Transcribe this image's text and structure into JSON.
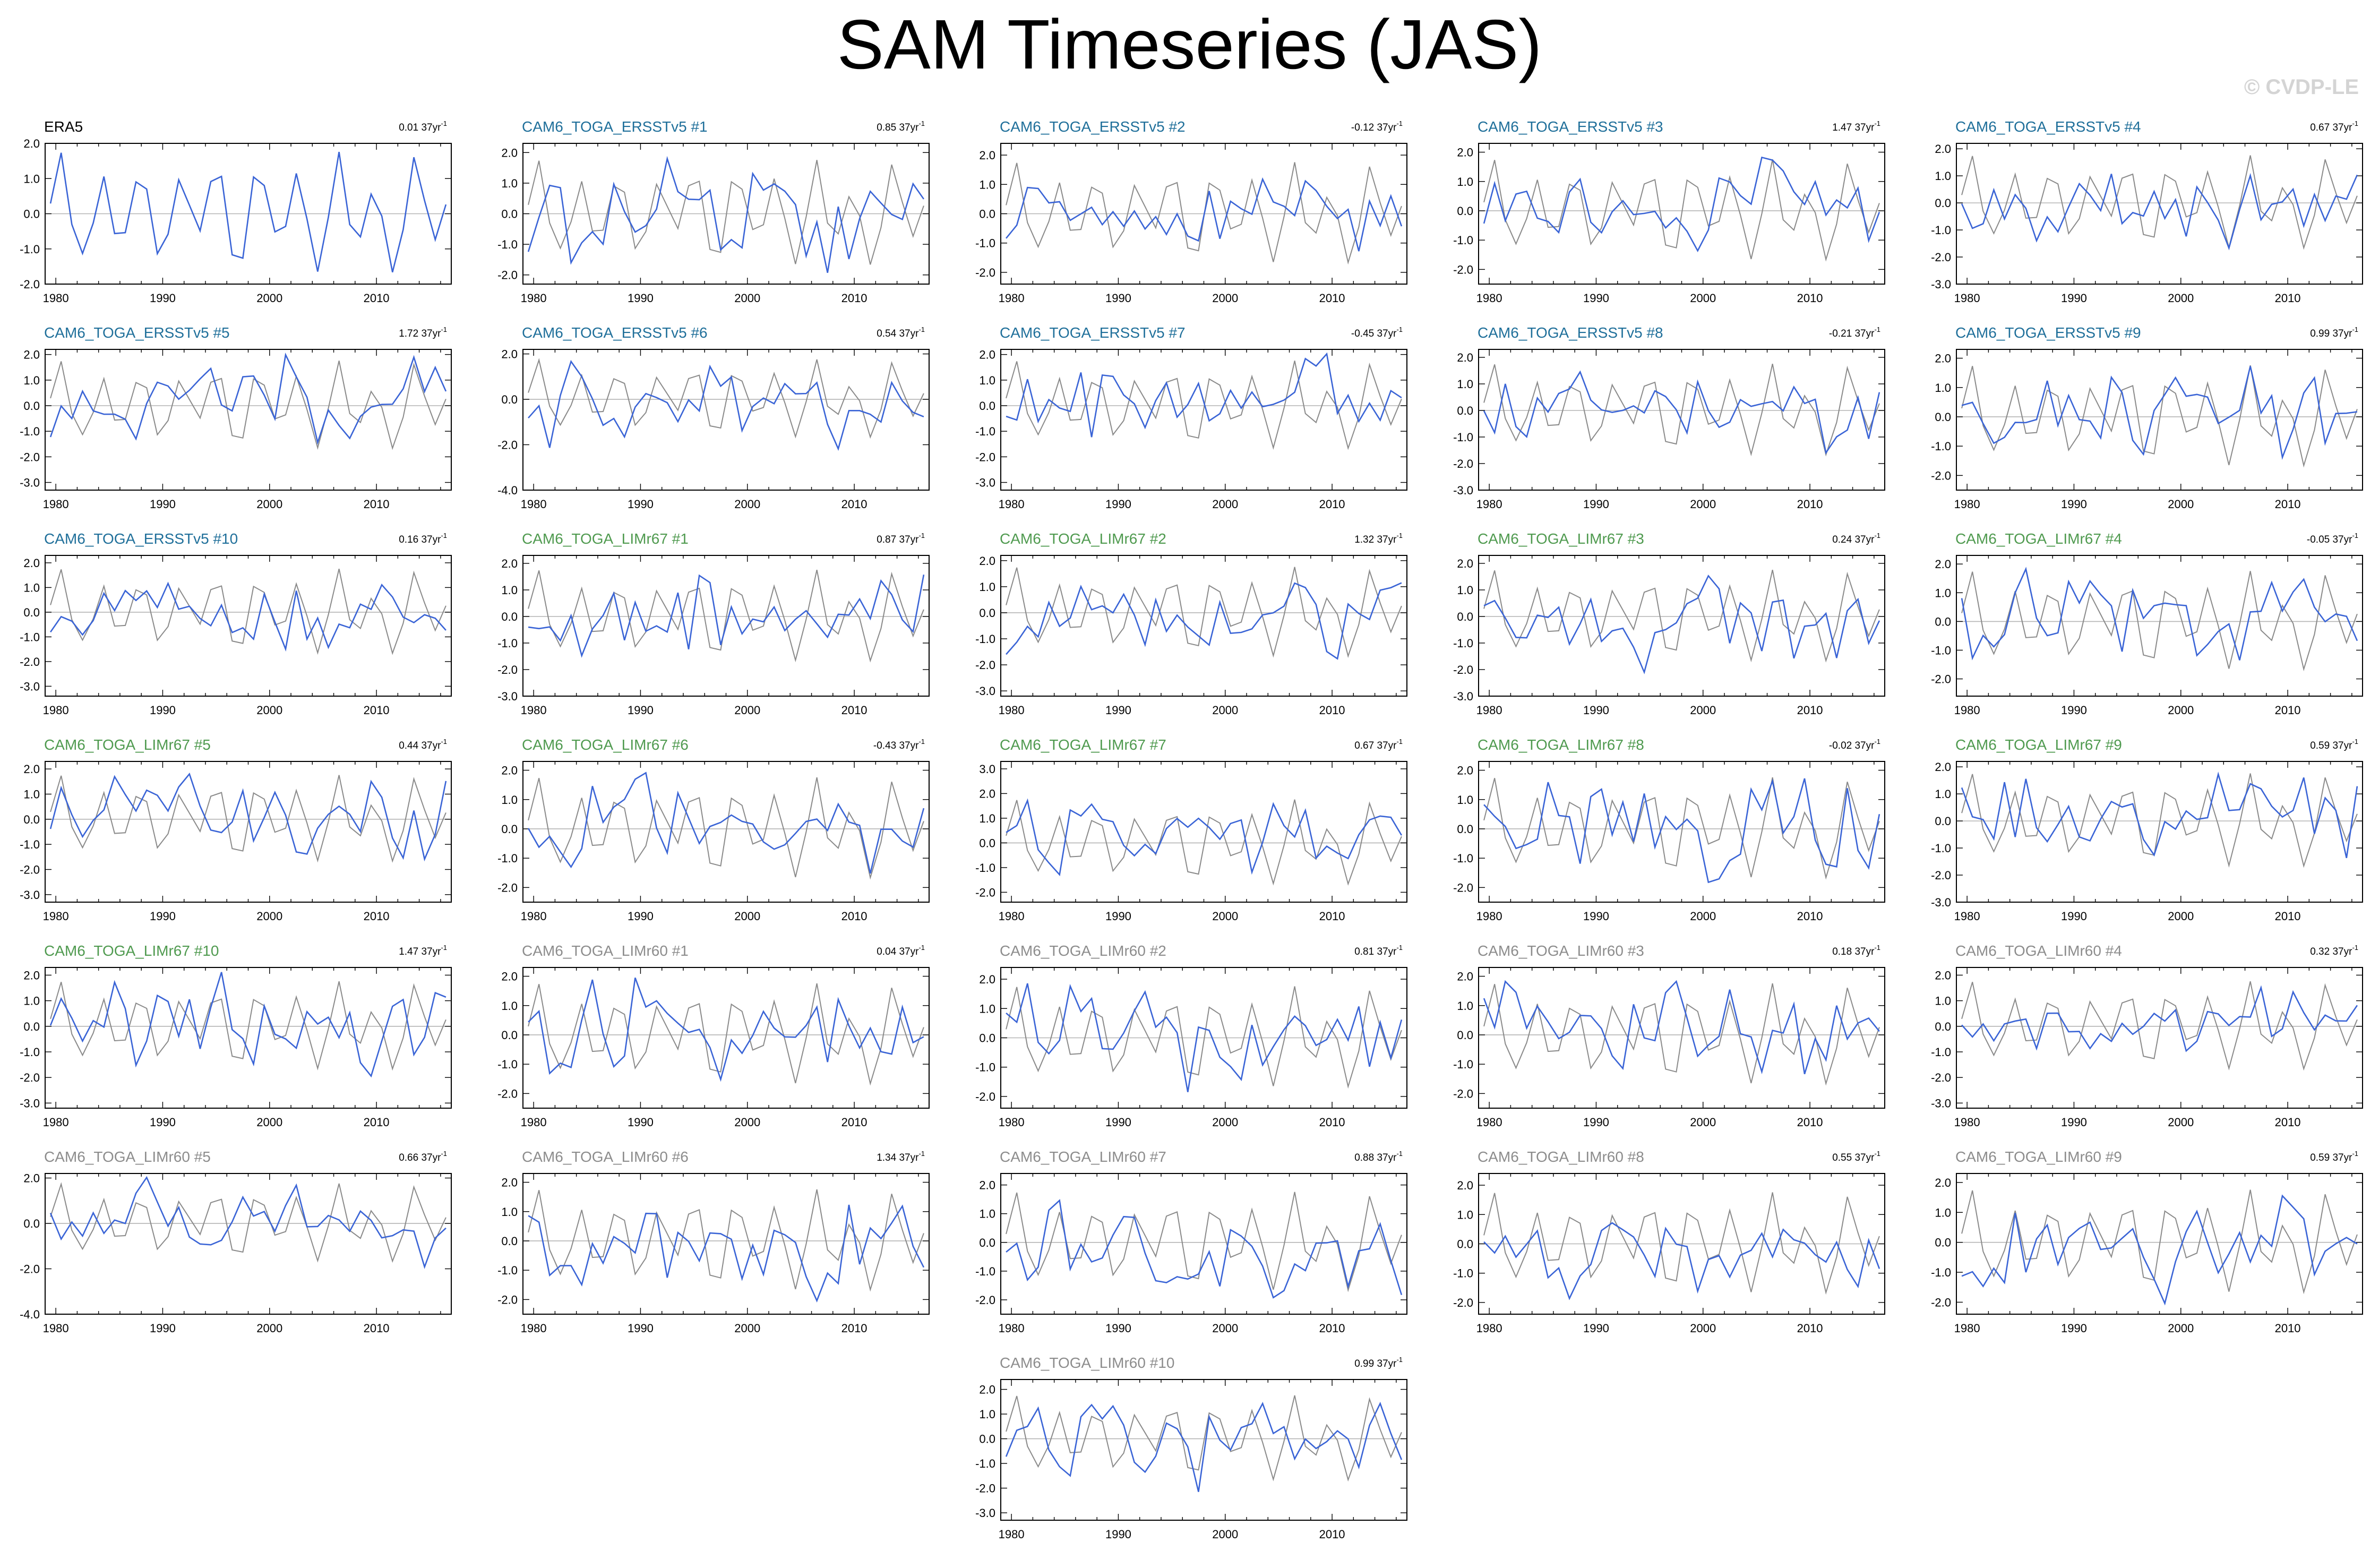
{
  "title": "SAM Timeseries (JAS)",
  "watermark": "© CVDP-LE",
  "colors": {
    "obs": "#000000",
    "ersst": "#1f6f9a",
    "limr67": "#4f9a4f",
    "limr60": "#8c8c8c",
    "member_line": "#3a64d6",
    "reference_line": "#8a8a8a",
    "zero_line": "#b4b4b4"
  },
  "chart_data": {
    "type": "line",
    "layout": "small-multiples, 5 columns",
    "x_range": [
      1979,
      2017
    ],
    "x_ticks": [
      1980,
      1990,
      2000,
      2010
    ],
    "panels": [
      {
        "title": "ERA5",
        "trend": "0.01 37yr",
        "group": "obs",
        "ylim": [
          -2.0,
          2.0
        ],
        "yticks": [
          "2.0",
          "1.0",
          "0.0",
          "-1.0",
          "-2.0"
        ],
        "seed": 11
      },
      {
        "title": "CAM6_TOGA_ERSSTv5 #1",
        "trend": "0.85 37yr",
        "group": "ersst",
        "ylim": [
          -2.3,
          2.3
        ],
        "yticks": [
          "2.0",
          "1.0",
          "0.0",
          "-1.0",
          "-2.0"
        ],
        "seed": 21
      },
      {
        "title": "CAM6_TOGA_ERSSTv5 #2",
        "trend": "-0.12 37yr",
        "group": "ersst",
        "ylim": [
          -2.4,
          2.4
        ],
        "yticks": [
          "2.0",
          "1.0",
          "0.0",
          "-1.0",
          "-2.0"
        ],
        "seed": 22
      },
      {
        "title": "CAM6_TOGA_ERSSTv5 #3",
        "trend": "1.47 37yr",
        "group": "ersst",
        "ylim": [
          -2.5,
          2.3
        ],
        "yticks": [
          "2.0",
          "1.0",
          "0.0",
          "-1.0",
          "-2.0"
        ],
        "seed": 23
      },
      {
        "title": "CAM6_TOGA_ERSSTv5 #4",
        "trend": "0.67 37yr",
        "group": "ersst",
        "ylim": [
          -3.0,
          2.2
        ],
        "yticks": [
          "2.0",
          "1.0",
          "0.0",
          "-1.0",
          "-2.0",
          "-3.0"
        ],
        "seed": 24
      },
      {
        "title": "CAM6_TOGA_ERSSTv5 #5",
        "trend": "1.72 37yr",
        "group": "ersst",
        "ylim": [
          -3.3,
          2.2
        ],
        "yticks": [
          "2.0",
          "1.0",
          "0.0",
          "-1.0",
          "-2.0",
          "-3.0"
        ],
        "seed": 25
      },
      {
        "title": "CAM6_TOGA_ERSSTv5 #6",
        "trend": "0.54 37yr",
        "group": "ersst",
        "ylim": [
          -4.0,
          2.2
        ],
        "yticks": [
          "2.0",
          "0.0",
          "-2.0",
          "-4.0"
        ],
        "seed": 26
      },
      {
        "title": "CAM6_TOGA_ERSSTv5 #7",
        "trend": "-0.45 37yr",
        "group": "ersst",
        "ylim": [
          -3.3,
          2.2
        ],
        "yticks": [
          "2.0",
          "1.0",
          "0.0",
          "-1.0",
          "-2.0",
          "-3.0"
        ],
        "seed": 27
      },
      {
        "title": "CAM6_TOGA_ERSSTv5 #8",
        "trend": "-0.21 37yr",
        "group": "ersst",
        "ylim": [
          -3.0,
          2.3
        ],
        "yticks": [
          "2.0",
          "1.0",
          "0.0",
          "-1.0",
          "-2.0",
          "-3.0"
        ],
        "seed": 28
      },
      {
        "title": "CAM6_TOGA_ERSSTv5 #9",
        "trend": "0.99 37yr",
        "group": "ersst",
        "ylim": [
          -2.5,
          2.3
        ],
        "yticks": [
          "2.0",
          "1.0",
          "0.0",
          "-1.0",
          "-2.0"
        ],
        "seed": 29
      },
      {
        "title": "CAM6_TOGA_ERSSTv5 #10",
        "trend": "0.16 37yr",
        "group": "ersst",
        "ylim": [
          -3.4,
          2.3
        ],
        "yticks": [
          "2.0",
          "1.0",
          "0.0",
          "-1.0",
          "-2.0",
          "-3.0"
        ],
        "seed": 30
      },
      {
        "title": "CAM6_TOGA_LIMr67 #1",
        "trend": "0.87 37yr",
        "group": "limr67",
        "ylim": [
          -3.0,
          2.3
        ],
        "yticks": [
          "2.0",
          "1.0",
          "0.0",
          "-1.0",
          "-2.0",
          "-3.0"
        ],
        "seed": 31
      },
      {
        "title": "CAM6_TOGA_LIMr67 #2",
        "trend": "1.32 37yr",
        "group": "limr67",
        "ylim": [
          -3.2,
          2.2
        ],
        "yticks": [
          "2.0",
          "1.0",
          "0.0",
          "-1.0",
          "-2.0",
          "-3.0"
        ],
        "seed": 32
      },
      {
        "title": "CAM6_TOGA_LIMr67 #3",
        "trend": "0.24 37yr",
        "group": "limr67",
        "ylim": [
          -3.0,
          2.3
        ],
        "yticks": [
          "2.0",
          "1.0",
          "0.0",
          "-1.0",
          "-2.0",
          "-3.0"
        ],
        "seed": 33
      },
      {
        "title": "CAM6_TOGA_LIMr67 #4",
        "trend": "-0.05 37yr",
        "group": "limr67",
        "ylim": [
          -2.6,
          2.3
        ],
        "yticks": [
          "2.0",
          "1.0",
          "0.0",
          "-1.0",
          "-2.0"
        ],
        "seed": 34
      },
      {
        "title": "CAM6_TOGA_LIMr67 #5",
        "trend": "0.44 37yr",
        "group": "limr67",
        "ylim": [
          -3.3,
          2.3
        ],
        "yticks": [
          "2.0",
          "1.0",
          "0.0",
          "-1.0",
          "-2.0",
          "-3.0"
        ],
        "seed": 35
      },
      {
        "title": "CAM6_TOGA_LIMr67 #6",
        "trend": "-0.43 37yr",
        "group": "limr67",
        "ylim": [
          -2.5,
          2.3
        ],
        "yticks": [
          "2.0",
          "1.0",
          "0.0",
          "-1.0",
          "-2.0"
        ],
        "seed": 36
      },
      {
        "title": "CAM6_TOGA_LIMr67 #7",
        "trend": "0.67 37yr",
        "group": "limr67",
        "ylim": [
          -2.4,
          3.3
        ],
        "yticks": [
          "3.0",
          "2.0",
          "1.0",
          "0.0",
          "-1.0",
          "-2.0"
        ],
        "seed": 37
      },
      {
        "title": "CAM6_TOGA_LIMr67 #8",
        "trend": "-0.02 37yr",
        "group": "limr67",
        "ylim": [
          -2.5,
          2.3
        ],
        "yticks": [
          "2.0",
          "1.0",
          "0.0",
          "-1.0",
          "-2.0"
        ],
        "seed": 38
      },
      {
        "title": "CAM6_TOGA_LIMr67 #9",
        "trend": "0.59 37yr",
        "group": "limr67",
        "ylim": [
          -3.0,
          2.2
        ],
        "yticks": [
          "2.0",
          "1.0",
          "0.0",
          "-1.0",
          "-2.0",
          "-3.0"
        ],
        "seed": 39
      },
      {
        "title": "CAM6_TOGA_LIMr67 #10",
        "trend": "1.47 37yr",
        "group": "limr67",
        "ylim": [
          -3.2,
          2.3
        ],
        "yticks": [
          "2.0",
          "1.0",
          "0.0",
          "-1.0",
          "-2.0",
          "-3.0"
        ],
        "seed": 40
      },
      {
        "title": "CAM6_TOGA_LIMr60 #1",
        "trend": "0.04 37yr",
        "group": "limr60",
        "ylim": [
          -2.5,
          2.3
        ],
        "yticks": [
          "2.0",
          "1.0",
          "0.0",
          "-1.0",
          "-2.0"
        ],
        "seed": 41
      },
      {
        "title": "CAM6_TOGA_LIMr60 #2",
        "trend": "0.81 37yr",
        "group": "limr60",
        "ylim": [
          -2.4,
          2.4
        ],
        "yticks": [
          "2.0",
          "1.0",
          "0.0",
          "-1.0",
          "-2.0"
        ],
        "seed": 42
      },
      {
        "title": "CAM6_TOGA_LIMr60 #3",
        "trend": "0.18 37yr",
        "group": "limr60",
        "ylim": [
          -2.5,
          2.3
        ],
        "yticks": [
          "2.0",
          "1.0",
          "0.0",
          "-1.0",
          "-2.0"
        ],
        "seed": 43
      },
      {
        "title": "CAM6_TOGA_LIMr60 #4",
        "trend": "0.32 37yr",
        "group": "limr60",
        "ylim": [
          -3.2,
          2.3
        ],
        "yticks": [
          "2.0",
          "1.0",
          "0.0",
          "-1.0",
          "-2.0",
          "-3.0"
        ],
        "seed": 44
      },
      {
        "title": "CAM6_TOGA_LIMr60 #5",
        "trend": "0.66 37yr",
        "group": "limr60",
        "ylim": [
          -4.0,
          2.2
        ],
        "yticks": [
          "2.0",
          "0.0",
          "-2.0",
          "-4.0"
        ],
        "seed": 45
      },
      {
        "title": "CAM6_TOGA_LIMr60 #6",
        "trend": "1.34 37yr",
        "group": "limr60",
        "ylim": [
          -2.5,
          2.3
        ],
        "yticks": [
          "2.0",
          "1.0",
          "0.0",
          "-1.0",
          "-2.0"
        ],
        "seed": 46
      },
      {
        "title": "CAM6_TOGA_LIMr60 #7",
        "trend": "0.88 37yr",
        "group": "limr60",
        "ylim": [
          -2.5,
          2.4
        ],
        "yticks": [
          "2.0",
          "1.0",
          "0.0",
          "-1.0",
          "-2.0"
        ],
        "seed": 47
      },
      {
        "title": "CAM6_TOGA_LIMr60 #8",
        "trend": "0.55 37yr",
        "group": "limr60",
        "ylim": [
          -2.4,
          2.4
        ],
        "yticks": [
          "2.0",
          "1.0",
          "0.0",
          "-1.0",
          "-2.0"
        ],
        "seed": 48
      },
      {
        "title": "CAM6_TOGA_LIMr60 #9",
        "trend": "0.59 37yr",
        "group": "limr60",
        "ylim": [
          -2.4,
          2.3
        ],
        "yticks": [
          "2.0",
          "1.0",
          "0.0",
          "-1.0",
          "-2.0"
        ],
        "seed": 49
      },
      {
        "title": "CAM6_TOGA_LIMr60 #10",
        "trend": "0.99 37yr",
        "group": "limr60",
        "ylim": [
          -3.3,
          2.4
        ],
        "yticks": [
          "2.0",
          "1.0",
          "0.0",
          "-1.0",
          "-2.0",
          "-3.0"
        ],
        "seed": 50
      }
    ]
  }
}
